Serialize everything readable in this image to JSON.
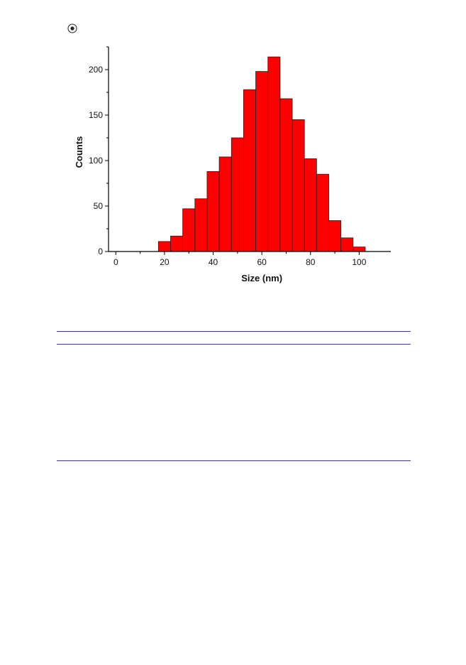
{
  "chart_data": {
    "type": "bar",
    "title": "",
    "xlabel": "Size (nm)",
    "ylabel": "Counts",
    "xlim": [
      -3,
      113
    ],
    "ylim": [
      0,
      225
    ],
    "bin_width": 5,
    "bins": [
      {
        "x": 20,
        "value": 11
      },
      {
        "x": 25,
        "value": 17
      },
      {
        "x": 30,
        "value": 47
      },
      {
        "x": 35,
        "value": 58
      },
      {
        "x": 40,
        "value": 88
      },
      {
        "x": 45,
        "value": 104
      },
      {
        "x": 50,
        "value": 125
      },
      {
        "x": 55,
        "value": 178
      },
      {
        "x": 60,
        "value": 198
      },
      {
        "x": 65,
        "value": 214
      },
      {
        "x": 70,
        "value": 168
      },
      {
        "x": 75,
        "value": 145
      },
      {
        "x": 80,
        "value": 102
      },
      {
        "x": 85,
        "value": 85
      },
      {
        "x": 90,
        "value": 34
      },
      {
        "x": 95,
        "value": 15
      },
      {
        "x": 100,
        "value": 5
      }
    ],
    "x_ticks": [
      0,
      20,
      40,
      60,
      80,
      100
    ],
    "y_ticks": [
      0,
      50,
      100,
      150,
      200
    ],
    "bar_color": "#ff0000",
    "bar_edge_color": "#202020",
    "grid": false,
    "legend": "none"
  }
}
